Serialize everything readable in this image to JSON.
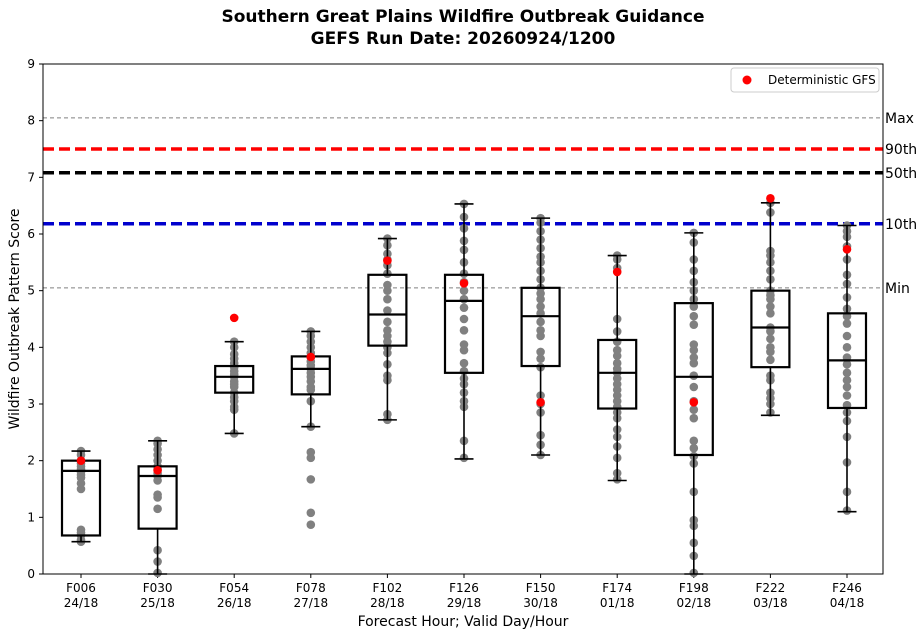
{
  "chart_data": {
    "type": "box",
    "title": "Southern Great Plains Wildfire Outbreak Guidance",
    "subtitle": "GEFS Run Date: 20260924/1200",
    "xlabel": "Forecast Hour; Valid Day/Hour",
    "ylabel": "Wildfire Outbreak Pattern Score",
    "ylim": [
      0,
      9
    ],
    "yticks": [
      0,
      1,
      2,
      3,
      4,
      5,
      6,
      7,
      8,
      9
    ],
    "grid": false,
    "legend": {
      "placement": "top-right",
      "entries": [
        {
          "label": "Deterministic GFS",
          "color": "#ff0000"
        }
      ]
    },
    "colors": {
      "member": "#808080",
      "deterministic": "#ff0000",
      "box": "#000000"
    },
    "reference_lines": [
      {
        "label": "Max",
        "value": 8.05,
        "color": "#808080",
        "style": "dashed-thin"
      },
      {
        "label": "90th",
        "value": 7.5,
        "color": "#ff0000",
        "style": "dashed-thick"
      },
      {
        "label": "50th",
        "value": 7.08,
        "color": "#000000",
        "style": "dashed-thick"
      },
      {
        "label": "10th",
        "value": 6.18,
        "color": "#0000cd",
        "style": "dashed-thick"
      },
      {
        "label": "Min",
        "value": 5.05,
        "color": "#808080",
        "style": "dashed-thin"
      }
    ],
    "categories": [
      {
        "hour": "F006",
        "valid": "24/18",
        "box": {
          "whislo": 0.57,
          "q1": 0.68,
          "med": 1.82,
          "q3": 2.0,
          "whishi": 2.17
        },
        "deterministic": 2.0,
        "members": [
          2.17,
          2.1,
          2.0,
          1.95,
          1.9,
          1.85,
          1.8,
          1.75,
          1.7,
          1.6,
          1.5,
          0.78,
          0.73,
          0.68,
          0.6,
          0.57
        ]
      },
      {
        "hour": "F030",
        "valid": "25/18",
        "box": {
          "whislo": 0.0,
          "q1": 0.8,
          "med": 1.73,
          "q3": 1.9,
          "whishi": 2.35
        },
        "deterministic": 1.83,
        "members": [
          2.35,
          2.3,
          2.2,
          2.1,
          2.0,
          1.9,
          1.85,
          1.78,
          1.73,
          1.65,
          1.4,
          1.35,
          1.15,
          0.42,
          0.22,
          0.02
        ]
      },
      {
        "hour": "F054",
        "valid": "26/18",
        "box": {
          "whislo": 2.48,
          "q1": 3.2,
          "med": 3.48,
          "q3": 3.67,
          "whishi": 4.1
        },
        "deterministic": 4.52,
        "members": [
          4.1,
          4.0,
          3.88,
          3.8,
          3.72,
          3.65,
          3.58,
          3.52,
          3.48,
          3.4,
          3.35,
          3.3,
          3.2,
          3.12,
          3.05,
          2.95,
          2.9,
          2.48
        ]
      },
      {
        "hour": "F078",
        "valid": "27/18",
        "box": {
          "whislo": 2.6,
          "q1": 3.17,
          "med": 3.62,
          "q3": 3.84,
          "whishi": 4.28
        },
        "deterministic": 3.83,
        "members": [
          4.28,
          4.2,
          4.1,
          4.0,
          3.9,
          3.82,
          3.75,
          3.68,
          3.62,
          3.55,
          3.48,
          3.4,
          3.3,
          3.25,
          3.05,
          2.6,
          2.15,
          2.05,
          1.67,
          1.08,
          0.87
        ]
      },
      {
        "hour": "F102",
        "valid": "28/18",
        "box": {
          "whislo": 2.72,
          "q1": 4.03,
          "med": 4.58,
          "q3": 5.28,
          "whishi": 5.92
        },
        "deterministic": 5.53,
        "members": [
          5.92,
          5.8,
          5.65,
          5.55,
          5.45,
          5.3,
          5.1,
          5.0,
          4.85,
          4.65,
          4.45,
          4.3,
          4.2,
          4.1,
          4.0,
          3.9,
          3.7,
          3.5,
          3.42,
          2.82,
          2.72
        ]
      },
      {
        "hour": "F126",
        "valid": "29/18",
        "box": {
          "whislo": 2.03,
          "q1": 3.55,
          "med": 4.82,
          "q3": 5.28,
          "whishi": 6.53
        },
        "deterministic": 5.13,
        "members": [
          6.53,
          6.3,
          6.1,
          5.88,
          5.72,
          5.5,
          5.3,
          5.15,
          5.0,
          4.85,
          4.7,
          4.5,
          4.3,
          4.05,
          3.95,
          3.72,
          3.58,
          3.45,
          3.35,
          3.2,
          3.05,
          2.95,
          2.35,
          2.05
        ]
      },
      {
        "hour": "F150",
        "valid": "30/18",
        "box": {
          "whislo": 2.1,
          "q1": 3.67,
          "med": 4.55,
          "q3": 5.05,
          "whishi": 6.28
        },
        "deterministic": 3.03,
        "members": [
          6.28,
          6.2,
          6.05,
          5.9,
          5.75,
          5.6,
          5.5,
          5.35,
          5.2,
          5.05,
          4.95,
          4.85,
          4.72,
          4.6,
          4.45,
          4.3,
          4.2,
          3.92,
          3.8,
          3.65,
          3.15,
          3.0,
          2.85,
          2.45,
          2.28,
          2.1
        ]
      },
      {
        "hour": "F174",
        "valid": "01/18",
        "box": {
          "whislo": 1.65,
          "q1": 2.92,
          "med": 3.55,
          "q3": 4.13,
          "whishi": 5.62
        },
        "deterministic": 5.33,
        "members": [
          5.62,
          5.55,
          5.4,
          4.5,
          4.28,
          4.1,
          3.95,
          3.85,
          3.72,
          3.62,
          3.55,
          3.45,
          3.35,
          3.25,
          3.15,
          3.05,
          2.95,
          2.85,
          2.75,
          2.55,
          2.42,
          2.25,
          2.05,
          1.78,
          1.67
        ]
      },
      {
        "hour": "F198",
        "valid": "02/18",
        "box": {
          "whislo": 0.0,
          "q1": 2.1,
          "med": 3.48,
          "q3": 4.78,
          "whishi": 6.02
        },
        "deterministic": 3.03,
        "members": [
          6.02,
          5.85,
          5.55,
          5.35,
          5.15,
          5.0,
          4.85,
          4.72,
          4.55,
          4.4,
          4.05,
          3.95,
          3.82,
          3.72,
          3.5,
          3.3,
          3.05,
          2.9,
          2.75,
          2.35,
          2.22,
          2.08,
          1.95,
          1.45,
          0.95,
          0.85,
          0.55,
          0.32,
          0.02
        ]
      },
      {
        "hour": "F222",
        "valid": "03/18",
        "box": {
          "whislo": 2.8,
          "q1": 3.65,
          "med": 4.35,
          "q3": 5.0,
          "whishi": 6.55
        },
        "deterministic": 6.63,
        "members": [
          6.55,
          6.38,
          5.7,
          5.62,
          5.5,
          5.35,
          5.2,
          5.0,
          4.92,
          4.85,
          4.72,
          4.6,
          4.35,
          4.28,
          4.15,
          4.0,
          3.92,
          3.78,
          3.5,
          3.42,
          3.2,
          3.1,
          3.0,
          2.85
        ]
      },
      {
        "hour": "F246",
        "valid": "04/18",
        "box": {
          "whislo": 1.1,
          "q1": 2.93,
          "med": 3.77,
          "q3": 4.6,
          "whishi": 6.15
        },
        "deterministic": 5.73,
        "members": [
          6.15,
          6.05,
          5.95,
          5.78,
          5.55,
          5.28,
          5.12,
          4.88,
          4.68,
          4.55,
          4.42,
          4.2,
          4.0,
          3.82,
          3.7,
          3.55,
          3.42,
          3.3,
          3.15,
          2.98,
          2.85,
          2.7,
          2.42,
          1.97,
          1.45,
          1.12
        ]
      }
    ]
  }
}
